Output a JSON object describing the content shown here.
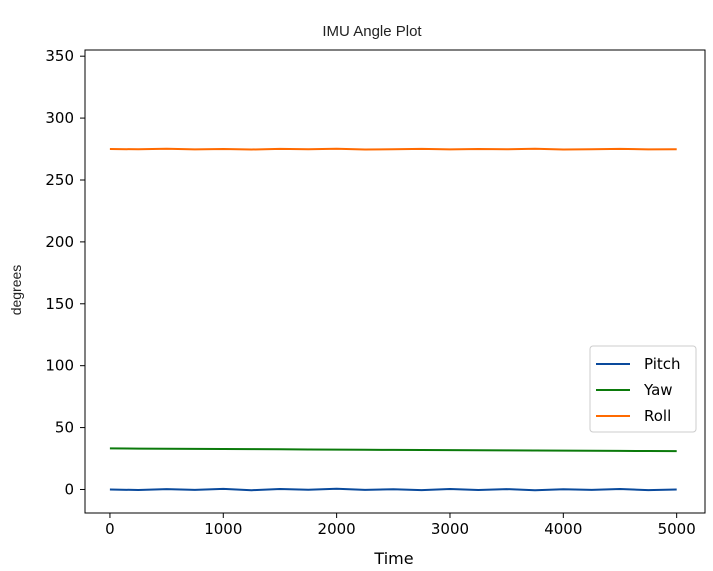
{
  "chart_data": {
    "type": "line",
    "title": "IMU Angle Plot",
    "xlabel": "Time",
    "ylabel": "degrees",
    "xlim": [
      -220,
      5250
    ],
    "ylim": [
      -19,
      355
    ],
    "xticks": [
      0,
      1000,
      2000,
      3000,
      4000,
      5000
    ],
    "yticks": [
      0,
      50,
      100,
      150,
      200,
      250,
      300,
      350
    ],
    "grid": false,
    "legend_position": "center-right",
    "x": [
      0,
      250,
      500,
      750,
      1000,
      1250,
      1500,
      1750,
      2000,
      2250,
      2500,
      2750,
      3000,
      3250,
      3500,
      3750,
      4000,
      4250,
      4500,
      4750,
      5000
    ],
    "series": [
      {
        "name": "Pitch",
        "color": "#0a4a9c",
        "values": [
          0,
          -0.4,
          0.3,
          -0.3,
          0.5,
          -0.6,
          0.4,
          -0.2,
          0.6,
          -0.3,
          0.2,
          -0.5,
          0.4,
          -0.4,
          0.3,
          -0.6,
          0.2,
          -0.3,
          0.4,
          -0.5,
          0
        ]
      },
      {
        "name": "Yaw",
        "color": "#0b7a0b",
        "values": [
          33.2,
          33.0,
          32.9,
          32.8,
          32.7,
          32.6,
          32.5,
          32.3,
          32.2,
          32.1,
          32.0,
          31.9,
          31.8,
          31.7,
          31.6,
          31.5,
          31.4,
          31.3,
          31.2,
          31.1,
          31.0
        ]
      },
      {
        "name": "Roll",
        "color": "#ff6a00",
        "values": [
          275.0,
          274.8,
          275.2,
          274.7,
          275.0,
          274.6,
          275.1,
          274.8,
          275.2,
          274.6,
          274.9,
          275.1,
          274.7,
          275.0,
          274.8,
          275.2,
          274.6,
          274.9,
          275.1,
          274.7,
          274.8
        ]
      }
    ]
  }
}
